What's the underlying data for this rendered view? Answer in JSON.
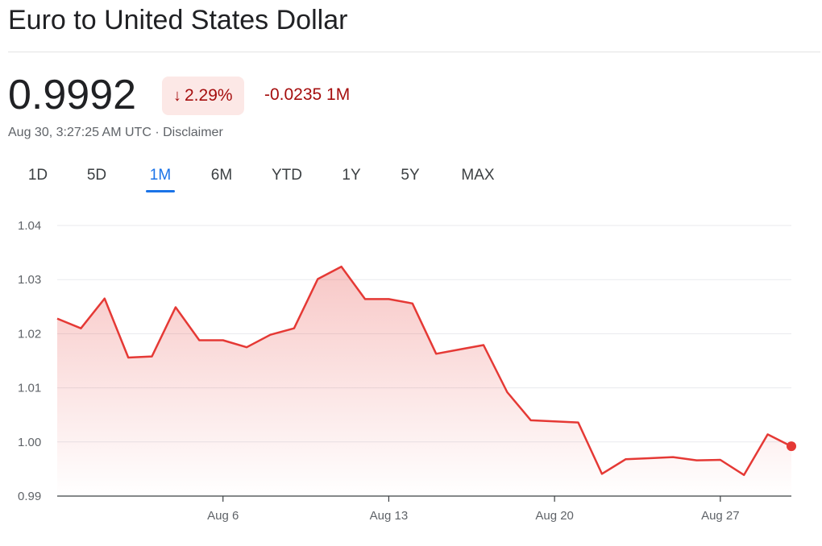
{
  "header": {
    "title": "Euro to United States Dollar"
  },
  "quote": {
    "price": "0.9992",
    "change_percent": "2.29%",
    "change_arrow": "↓",
    "change_value": "-0.0235 1M",
    "timestamp": "Aug 30, 3:27:25 AM UTC · Disclaimer"
  },
  "tabs": [
    {
      "label": "1D"
    },
    {
      "label": "5D"
    },
    {
      "label": "1M",
      "active": true
    },
    {
      "label": "6M"
    },
    {
      "label": "YTD"
    },
    {
      "label": "1Y"
    },
    {
      "label": "5Y"
    },
    {
      "label": "MAX"
    }
  ],
  "colors": {
    "line": "#e53935",
    "negative": "#a50e0e",
    "active_tab": "#1a73e8",
    "grid": "#e8eaed"
  },
  "chart_data": {
    "type": "area",
    "x_tick_labels": [
      {
        "label": "Aug 6",
        "day": 6
      },
      {
        "label": "Aug 13",
        "day": 13
      },
      {
        "label": "Aug 20",
        "day": 20
      },
      {
        "label": "Aug 27",
        "day": 27
      }
    ],
    "y_ticks": [
      1.04,
      1.03,
      1.02,
      1.01,
      1.0,
      0.99
    ],
    "y_tick_labels": [
      "1.04",
      "1.03",
      "1.02",
      "1.01",
      "1.00",
      "0.99"
    ],
    "ylim": [
      0.99,
      1.04
    ],
    "xlim": [
      -1,
      30
    ],
    "grid": true,
    "series": [
      {
        "x": [
          -1,
          0,
          1,
          2,
          3,
          4,
          5,
          6,
          7,
          8,
          9,
          10,
          11,
          12,
          13,
          14,
          15,
          16,
          17,
          18,
          19,
          20,
          21,
          22,
          23,
          24,
          25,
          26,
          27,
          28,
          29,
          30
        ],
        "values": [
          1.0228,
          1.021,
          1.0265,
          1.0156,
          1.0158,
          1.0249,
          1.0188,
          1.0188,
          1.0175,
          1.0198,
          1.021,
          1.0301,
          1.0324,
          1.0264,
          1.0264,
          1.0256,
          1.0163,
          1.0171,
          1.0179,
          1.0092,
          1.004,
          1.0038,
          1.0036,
          0.9941,
          0.9968,
          0.997,
          0.9972,
          0.9966,
          0.9967,
          0.9939,
          1.0014,
          0.9992
        ]
      }
    ]
  }
}
